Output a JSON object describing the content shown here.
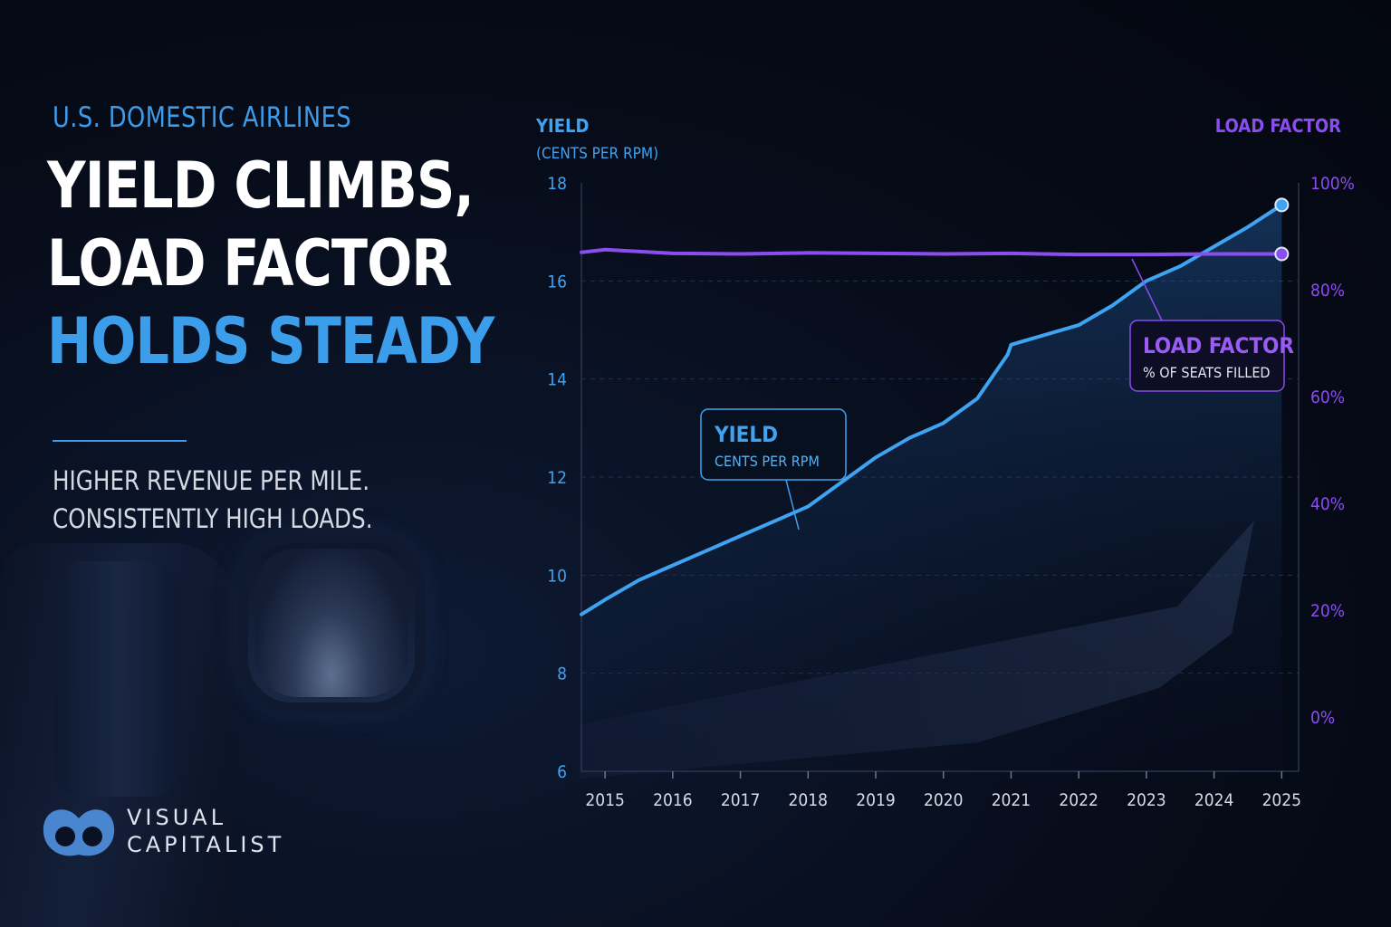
{
  "kicker": "U.S. DOMESTIC AIRLINES",
  "headline": {
    "line1": "YIELD CLIMBS,",
    "line2": "LOAD FACTOR",
    "line3": "HOLDS STEADY"
  },
  "subhead": {
    "line1": "HIGHER REVENUE PER MILE.",
    "line2": "CONSISTENTLY HIGH LOADS."
  },
  "brand": {
    "line1": "VISUAL",
    "line2": "CAPITALIST",
    "logo_icon": "visual-capitalist-logo-icon",
    "color": "#4a86cf"
  },
  "colors": {
    "yield": "#3ea3f0",
    "load_factor": "#8a4df0",
    "kicker": "#3d9be9",
    "headline_accent": "#3c9eea"
  },
  "chart_data": {
    "type": "line",
    "x_ticks": [
      "2015",
      "2016",
      "2017",
      "2018",
      "2019",
      "2020",
      "2021",
      "2022",
      "2023",
      "2024",
      "2025"
    ],
    "xlim": [
      2014.65,
      2025.25
    ],
    "left_axis": {
      "title": "YIELD",
      "subtitle": "(CENTS PER RPM)",
      "ticks": [
        "18",
        "16",
        "14",
        "12",
        "10",
        "8",
        "6"
      ],
      "ylim": [
        6,
        18
      ]
    },
    "right_axis": {
      "title": "LOAD FACTOR",
      "ticks": [
        "100%",
        "80%",
        "60%",
        "40%",
        "20%",
        "0%"
      ],
      "ylim": [
        0,
        100
      ]
    },
    "grid": true,
    "series": [
      {
        "name": "YIELD",
        "axis": "left",
        "x": [
          2014.65,
          2015.0,
          2015.5,
          2016.0,
          2016.5,
          2017.0,
          2017.5,
          2018.0,
          2018.5,
          2019.0,
          2019.5,
          2020.0,
          2020.5,
          2020.95,
          2021.0,
          2021.5,
          2022.0,
          2022.5,
          2023.0,
          2023.5,
          2024.0,
          2024.5,
          2025.0
        ],
        "y": [
          9.2,
          9.5,
          9.9,
          10.2,
          10.5,
          10.8,
          11.1,
          11.4,
          11.9,
          12.4,
          12.8,
          13.1,
          13.6,
          14.5,
          14.7,
          14.9,
          15.1,
          15.5,
          16.0,
          16.3,
          16.7,
          17.1,
          17.55
        ],
        "end_marker": true
      },
      {
        "name": "LOAD FACTOR",
        "axis": "right",
        "x": [
          2014.65,
          2015.0,
          2016.0,
          2017.0,
          2018.0,
          2019.0,
          2020.0,
          2021.0,
          2022.0,
          2023.0,
          2024.0,
          2025.0
        ],
        "y": [
          87,
          87.5,
          86.8,
          86.7,
          86.9,
          86.8,
          86.7,
          86.8,
          86.6,
          86.6,
          86.7,
          86.7
        ],
        "end_marker": true
      }
    ],
    "annotations": [
      {
        "series": "YIELD",
        "title": "YIELD",
        "subtitle": "CENTS PER RPM"
      },
      {
        "series": "LOAD FACTOR",
        "title": "LOAD FACTOR",
        "subtitle": "% OF SEATS FILLED"
      }
    ]
  }
}
